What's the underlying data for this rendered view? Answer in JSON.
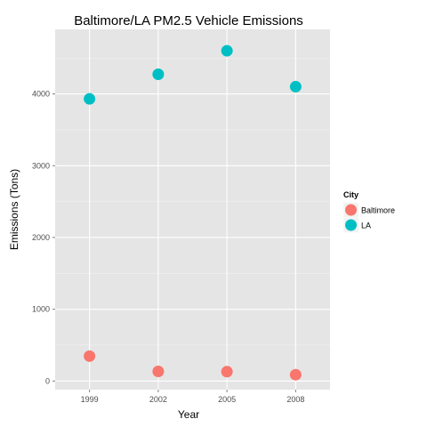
{
  "chart_data": {
    "type": "scatter",
    "title": "Baltimore/LA PM2.5 Vehicle Emissions",
    "xlabel": "Year",
    "ylabel": "Emissions (Tons)",
    "x": [
      "1999",
      "2002",
      "2005",
      "2008"
    ],
    "xlim": [
      0.5,
      4.5
    ],
    "ylim": [
      -120,
      4900
    ],
    "yticks": [
      0,
      1000,
      2000,
      3000,
      4000
    ],
    "grid": true,
    "legend": {
      "title": "City",
      "position": "right"
    },
    "series": [
      {
        "name": "Baltimore",
        "color": "#F8766D",
        "values": [
          346.8,
          134.3,
          130.4,
          88.3
        ]
      },
      {
        "name": "LA",
        "color": "#00BFC4",
        "values": [
          3931.1,
          4274.0,
          4601.4,
          4101.3
        ]
      }
    ]
  }
}
